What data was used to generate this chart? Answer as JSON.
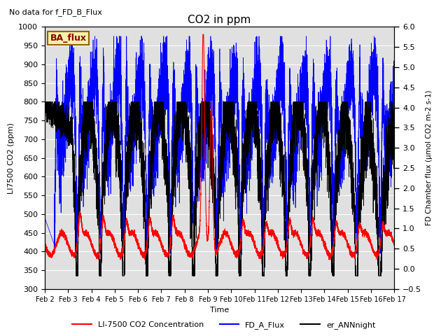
{
  "title": "CO2 in ppm",
  "no_data_text": "No data for f_FD_B_Flux",
  "ba_flux_label": "BA_flux",
  "xlabel": "Time",
  "ylabel_left": "LI7500 CO2 (ppm)",
  "ylabel_right": "FD Chamber flux (μmol CO2 m-2 s-1)",
  "ylim_left": [
    300,
    1000
  ],
  "ylim_right": [
    -0.5,
    6.0
  ],
  "xtick_labels": [
    "Feb 2",
    "Feb 3",
    "Feb 4",
    "Feb 5",
    "Feb 6",
    "Feb 7",
    "Feb 8",
    "Feb 9",
    "Feb 10",
    "Feb 11",
    "Feb 12",
    "Feb 13",
    "Feb 14",
    "Feb 15",
    "Feb 16",
    "Feb 17"
  ],
  "legend_entries": [
    "LI-7500 CO2 Concentration",
    "FD_A_Flux",
    "er_ANNnight"
  ],
  "legend_colors": [
    "red",
    "blue",
    "black"
  ],
  "bg_color": "#e0e0e0",
  "fig_bg": "#ffffff",
  "n_points": 7200,
  "seed": 7
}
